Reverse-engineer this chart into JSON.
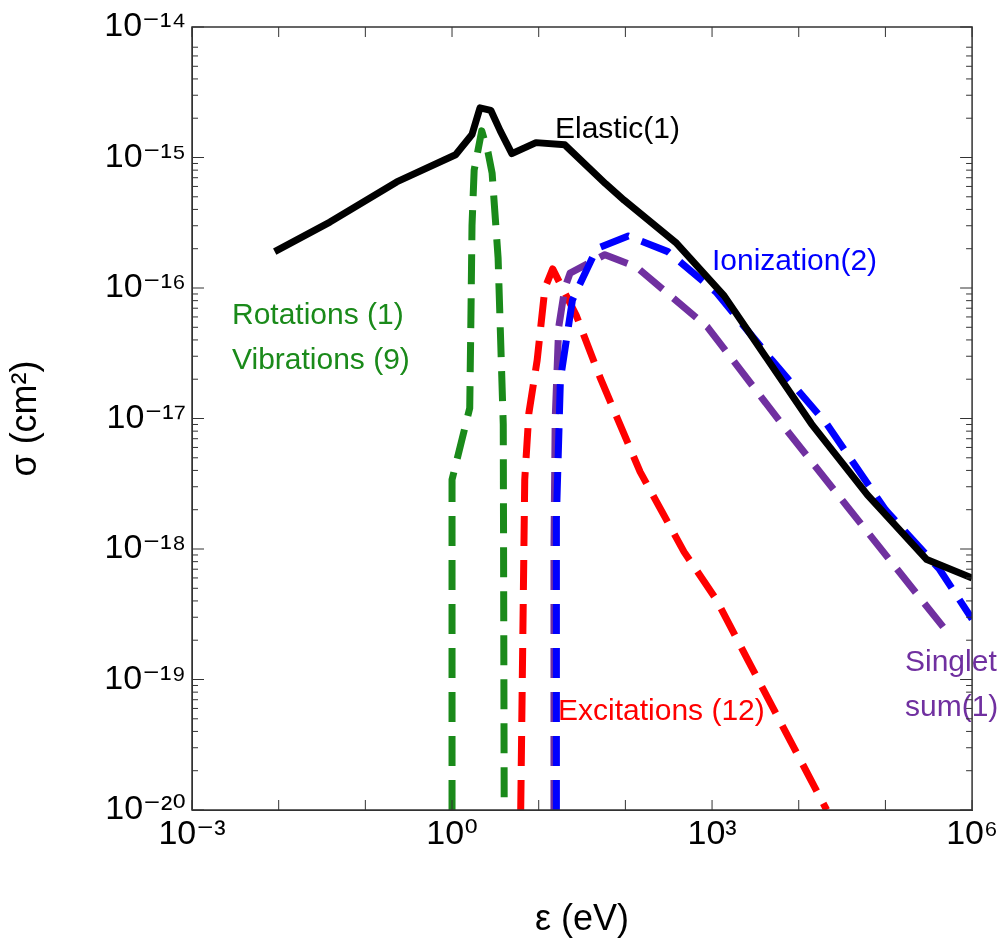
{
  "chart_data": {
    "type": "line",
    "xlabel": "ε (eV)",
    "ylabel": "σ (cm²)",
    "log": "xy",
    "grid": false,
    "legend": false,
    "marker": "none",
    "xlim": [
      0.001,
      1000000
    ],
    "ylim": [
      1e-20,
      1e-14
    ],
    "xticks": [
      {
        "value": 0.001,
        "label": "10⁻³"
      },
      {
        "value": 1,
        "label": "10⁰"
      },
      {
        "value": 1000,
        "label": "10³"
      },
      {
        "value": 1000000,
        "label": "10⁶"
      }
    ],
    "yticks": [
      {
        "value": 1e-20,
        "label": "10⁻²⁰"
      },
      {
        "value": 1e-19,
        "label": "10⁻¹⁹"
      },
      {
        "value": 1e-18,
        "label": "10⁻¹⁸"
      },
      {
        "value": 1e-17,
        "label": "10⁻¹⁷"
      },
      {
        "value": 1e-16,
        "label": "10⁻¹⁶"
      },
      {
        "value": 1e-15,
        "label": "10⁻¹⁵"
      },
      {
        "value": 1e-14,
        "label": "10⁻¹⁴"
      }
    ],
    "series": [
      {
        "name": "Elastic(1)",
        "color": "#000000",
        "line_style": "solid",
        "x": [
          0.009,
          0.039,
          0.23,
          1.1,
          1.7,
          2.1,
          2.8,
          3.6,
          4.9,
          9.3,
          20,
          59,
          97,
          390,
          1380,
          14000,
          62000,
          300000,
          1000000
        ],
        "values": [
          1.9e-16,
          3.2e-16,
          6.5e-16,
          1.05e-15,
          1.5e-15,
          2.4e-15,
          2.3e-15,
          1.6e-15,
          1.07e-15,
          1.3e-15,
          1.25e-15,
          6.3e-16,
          4.7e-16,
          2.2e-16,
          8.7e-17,
          9.1e-18,
          2.6e-18,
          8.3e-19,
          6e-19
        ]
      },
      {
        "name": "Ionization(2)",
        "color": "#0000ff",
        "line_style": "dashed",
        "x": [
          16,
          16,
          17.8,
          24.5,
          46.6,
          108,
          309,
          1110,
          4900,
          21000,
          100000,
          420000,
          1000000
        ],
        "values": [
          1e-20,
          1.7e-18,
          2e-17,
          8.1e-17,
          2e-16,
          2.5e-16,
          1.9e-16,
          9.3e-17,
          2.8e-17,
          9.1e-18,
          2e-18,
          7e-19,
          2.9e-19
        ]
      },
      {
        "name": "Singlet sum(1)",
        "color": "#7030a0",
        "line_style": "dashed",
        "x": [
          15,
          15,
          15.5,
          17,
          20,
          23,
          58,
          134,
          890,
          7400,
          62000,
          470000
        ],
        "values": [
          1e-20,
          1e-18,
          1e-17,
          5e-17,
          1e-16,
          1.3e-16,
          1.8e-16,
          1.45e-16,
          5e-17,
          8e-18,
          1.35e-18,
          2.5e-19
        ]
      },
      {
        "name": "Excitations (12)",
        "color": "#ff0000",
        "line_style": "dashed",
        "x": [
          6.2,
          6.9,
          7.7,
          9.6,
          11.8,
          14.5,
          27,
          52,
          148,
          475,
          1120,
          2600,
          9300,
          21000
        ],
        "values": [
          1e-20,
          3.4e-18,
          1.1e-17,
          2.8e-17,
          1e-16,
          1.4e-16,
          6.2e-17,
          2e-17,
          3.9e-18,
          9.5e-19,
          4.1e-19,
          1.4e-19,
          2.8e-20,
          1e-20
        ]
      },
      {
        "name": "Rotations (1) Vibrations (9)",
        "color": "#1a8a1a",
        "line_style": "dashed",
        "x": [
          1.0,
          1.0,
          1.6,
          1.65,
          1.7,
          1.8,
          2.2,
          2.6,
          2.9,
          3.4,
          3.9,
          4.0
        ],
        "values": [
          1e-20,
          3.4e-18,
          1.2e-17,
          5.6e-17,
          3e-16,
          8e-16,
          1.6e-15,
          1.1e-15,
          7.6e-16,
          1.7e-16,
          9e-18,
          1e-20
        ]
      }
    ]
  }
}
